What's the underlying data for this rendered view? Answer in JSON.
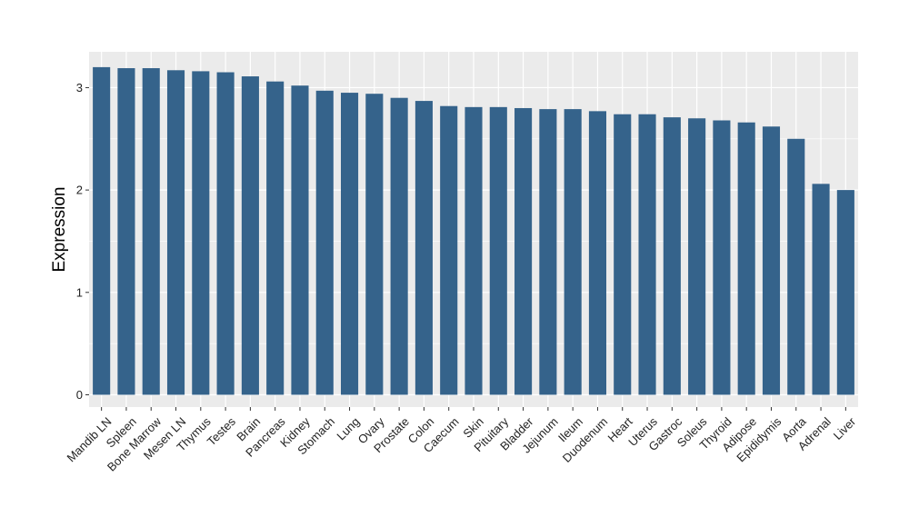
{
  "chart_data": {
    "type": "bar",
    "title": "",
    "xlabel": "",
    "ylabel": "Expression",
    "ylim": [
      -0.12,
      3.35
    ],
    "y_ticks": [
      0,
      1,
      2,
      3
    ],
    "grid": true,
    "categories": [
      "Mandib LN",
      "Spleen",
      "Bone Marrow",
      "Mesen LN",
      "Thymus",
      "Testes",
      "Brain",
      "Pancreas",
      "Kidney",
      "Stomach",
      "Lung",
      "Ovary",
      "Prostate",
      "Colon",
      "Caecum",
      "Skin",
      "Pituitary",
      "Bladder",
      "Jejunum",
      "Ileum",
      "Duodenum",
      "Heart",
      "Uterus",
      "Gastroc",
      "Soleus",
      "Thyroid",
      "Adipose",
      "Epididymis",
      "Aorta",
      "Adrenal",
      "Liver"
    ],
    "values": [
      3.2,
      3.19,
      3.19,
      3.17,
      3.16,
      3.15,
      3.11,
      3.06,
      3.02,
      2.97,
      2.95,
      2.94,
      2.9,
      2.87,
      2.82,
      2.81,
      2.81,
      2.8,
      2.79,
      2.79,
      2.77,
      2.74,
      2.74,
      2.71,
      2.7,
      2.68,
      2.66,
      2.62,
      2.5,
      2.06,
      2.0
    ]
  },
  "colors": {
    "bar": "#35638B",
    "panel_background": "#EBEBEB",
    "grid_line": "#FFFFFF",
    "tick": "#333333"
  }
}
